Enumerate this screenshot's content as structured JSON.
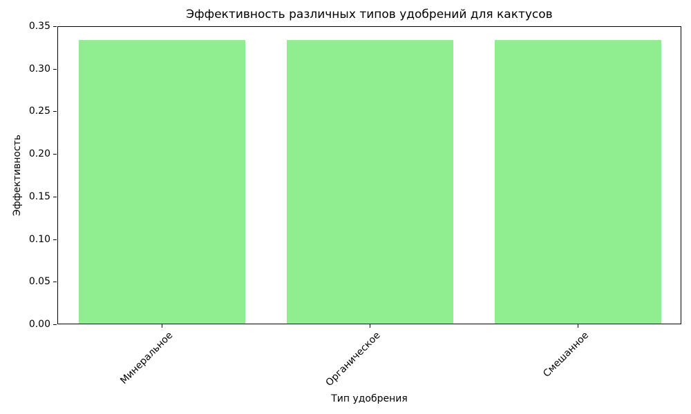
{
  "chart_data": {
    "type": "bar",
    "title": "Эффективность различных типов удобрений для кактусов",
    "xlabel": "Тип удобрения",
    "ylabel": "Эффективность",
    "categories": [
      "Минеральное",
      "Органическое",
      "Смешанное"
    ],
    "values": [
      0.3333,
      0.3333,
      0.3333
    ],
    "ylim": [
      0,
      0.35
    ],
    "ytick_labels": [
      "0.00",
      "0.05",
      "0.10",
      "0.15",
      "0.20",
      "0.25",
      "0.30",
      "0.35"
    ],
    "yticks": [
      0.0,
      0.05,
      0.1,
      0.15,
      0.2,
      0.25,
      0.3,
      0.35
    ],
    "bar_color": "#90EE90",
    "bar_width_fraction": 0.8,
    "xtick_rotation_deg": 45,
    "grid": false,
    "legend": null,
    "background_color": "#FFFFFF",
    "axis_color": "#000000"
  }
}
